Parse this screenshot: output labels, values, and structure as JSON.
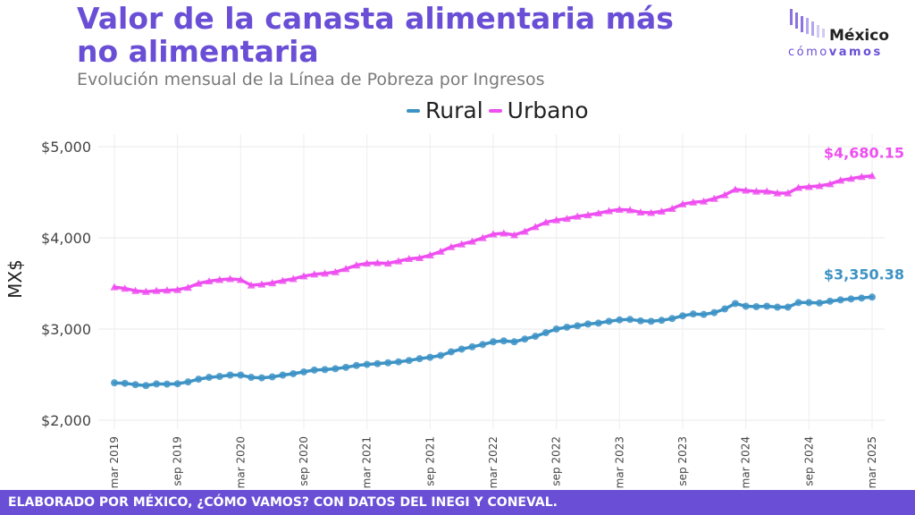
{
  "header": {
    "title": "Valor de la canasta alimentaria más no alimentaria",
    "subtitle": "Evolución mensual de la Línea de Pobreza por Ingresos"
  },
  "logo": {
    "word": "México",
    "sub_light": "cómo",
    "sub_bold": "vamos",
    "color": "#6a4fd6"
  },
  "footer": {
    "text": "ELABORADO POR MÉXICO, ¿CÓMO VAMOS? CON DATOS DEL INEGI Y CONEVAL."
  },
  "chart_data": {
    "type": "line",
    "title": "Valor de la canasta alimentaria más no alimentaria",
    "subtitle": "Evolución mensual de la Línea de Pobreza por Ingresos",
    "xlabel": "",
    "ylabel": "MX$",
    "ylim": [
      2000,
      5000
    ],
    "yticks": [
      2000,
      3000,
      4000,
      5000
    ],
    "ytick_labels": [
      "$2,000",
      "$3,000",
      "$4,000",
      "$5,000"
    ],
    "xtick_labels": [
      "mar 2019",
      "sep 2019",
      "mar 2020",
      "sep 2020",
      "mar 2021",
      "sep 2021",
      "mar 2022",
      "sep 2022",
      "mar 2023",
      "sep 2023",
      "mar 2024",
      "sep 2024",
      "mar 2025"
    ],
    "grid": true,
    "legend_position": "top-center",
    "x": [
      "mar 2019",
      "abr 2019",
      "may 2019",
      "jun 2019",
      "jul 2019",
      "ago 2019",
      "sep 2019",
      "oct 2019",
      "nov 2019",
      "dic 2019",
      "ene 2020",
      "feb 2020",
      "mar 2020",
      "abr 2020",
      "may 2020",
      "jun 2020",
      "jul 2020",
      "ago 2020",
      "sep 2020",
      "oct 2020",
      "nov 2020",
      "dic 2020",
      "ene 2021",
      "feb 2021",
      "mar 2021",
      "abr 2021",
      "may 2021",
      "jun 2021",
      "jul 2021",
      "ago 2021",
      "sep 2021",
      "oct 2021",
      "nov 2021",
      "dic 2021",
      "ene 2022",
      "feb 2022",
      "mar 2022",
      "abr 2022",
      "may 2022",
      "jun 2022",
      "jul 2022",
      "ago 2022",
      "sep 2022",
      "oct 2022",
      "nov 2022",
      "dic 2022",
      "ene 2023",
      "feb 2023",
      "mar 2023",
      "abr 2023",
      "may 2023",
      "jun 2023",
      "jul 2023",
      "ago 2023",
      "sep 2023",
      "oct 2023",
      "nov 2023",
      "dic 2023",
      "ene 2024",
      "feb 2024",
      "mar 2024",
      "abr 2024",
      "may 2024",
      "jun 2024",
      "jul 2024",
      "ago 2024",
      "sep 2024",
      "oct 2024",
      "nov 2024",
      "dic 2024",
      "ene 2025",
      "feb 2025",
      "mar 2025"
    ],
    "series": [
      {
        "name": "Rural",
        "color": "#3e93c5",
        "marker": "circle",
        "end_label": "$3,350.38",
        "values": [
          2410,
          2405,
          2390,
          2380,
          2398,
          2396,
          2400,
          2420,
          2450,
          2470,
          2480,
          2495,
          2495,
          2470,
          2465,
          2475,
          2495,
          2510,
          2530,
          2550,
          2555,
          2565,
          2580,
          2600,
          2612,
          2620,
          2630,
          2640,
          2655,
          2675,
          2690,
          2710,
          2750,
          2780,
          2805,
          2830,
          2860,
          2870,
          2860,
          2890,
          2920,
          2960,
          3000,
          3020,
          3035,
          3055,
          3065,
          3085,
          3100,
          3105,
          3090,
          3085,
          3095,
          3115,
          3145,
          3165,
          3160,
          3180,
          3220,
          3280,
          3250,
          3245,
          3250,
          3240,
          3240,
          3290,
          3290,
          3285,
          3305,
          3320,
          3330,
          3340,
          3350.38
        ]
      },
      {
        "name": "Urbano",
        "color": "#ee4ff0",
        "marker": "triangle",
        "end_label": "$4,680.15",
        "values": [
          3460,
          3445,
          3420,
          3410,
          3420,
          3425,
          3430,
          3455,
          3500,
          3525,
          3540,
          3550,
          3540,
          3480,
          3490,
          3505,
          3530,
          3550,
          3580,
          3600,
          3610,
          3625,
          3660,
          3700,
          3720,
          3725,
          3720,
          3745,
          3770,
          3780,
          3810,
          3850,
          3900,
          3930,
          3960,
          4000,
          4040,
          4050,
          4030,
          4070,
          4120,
          4170,
          4195,
          4210,
          4235,
          4250,
          4270,
          4295,
          4310,
          4305,
          4280,
          4275,
          4290,
          4320,
          4370,
          4390,
          4400,
          4430,
          4470,
          4530,
          4520,
          4510,
          4510,
          4490,
          4490,
          4550,
          4560,
          4570,
          4590,
          4630,
          4650,
          4670,
          4680.15
        ]
      }
    ]
  }
}
